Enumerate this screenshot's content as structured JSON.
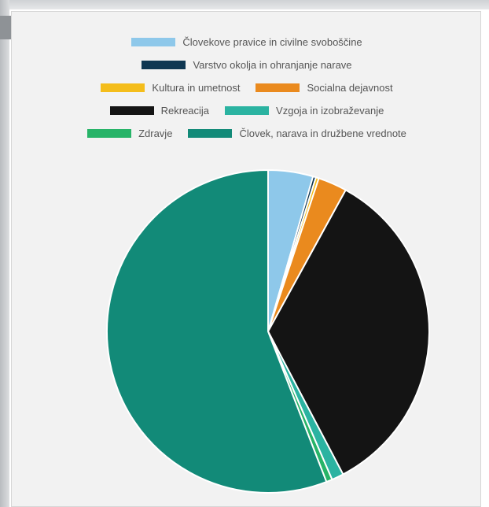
{
  "chart_data": {
    "type": "pie",
    "legend_position": "top",
    "legend_rows": [
      [
        0
      ],
      [
        1
      ],
      [
        2,
        3
      ],
      [
        4,
        5
      ],
      [
        6,
        7
      ]
    ],
    "series": [
      {
        "name": "Človekove pravice in civilne svoboščine",
        "value": 4.5,
        "color": "#8ec8ea"
      },
      {
        "name": "Varstvo okolja in ohranjanje narave",
        "value": 0.3,
        "color": "#0f3752"
      },
      {
        "name": "Kultura in umetnost",
        "value": 0.3,
        "color": "#f4bd1b"
      },
      {
        "name": "Socialna dejavnost",
        "value": 2.9,
        "color": "#ea8a1e"
      },
      {
        "name": "Rekreacija",
        "value": 34.3,
        "color": "#141414"
      },
      {
        "name": "Vzgoja in izobraževanje",
        "value": 1.2,
        "color": "#2bb3a1"
      },
      {
        "name": "Zdravje",
        "value": 0.6,
        "color": "#27b468"
      },
      {
        "name": "Človek, narava in družbene vrednote",
        "value": 55.9,
        "color": "#128a78"
      }
    ]
  }
}
